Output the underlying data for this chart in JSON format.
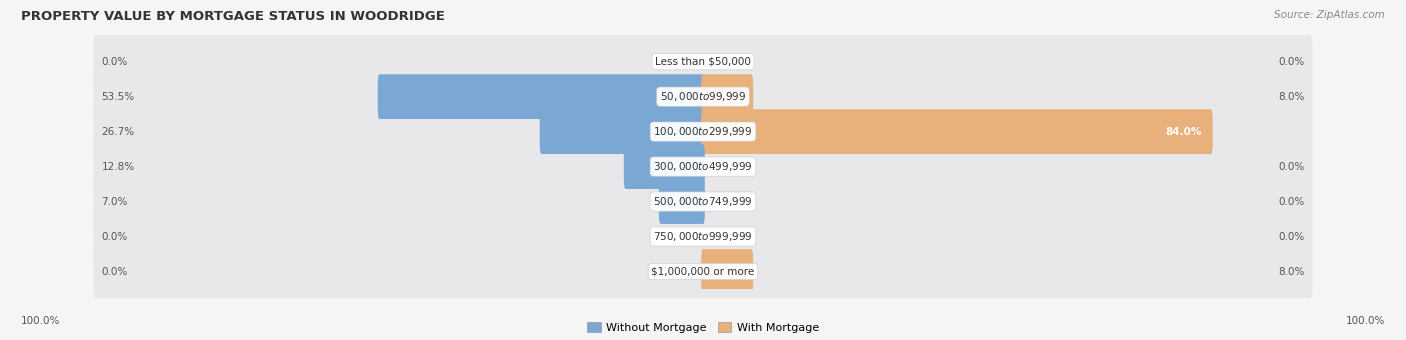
{
  "title": "PROPERTY VALUE BY MORTGAGE STATUS IN WOODRIDGE",
  "source": "Source: ZipAtlas.com",
  "categories": [
    "Less than $50,000",
    "$50,000 to $99,999",
    "$100,000 to $299,999",
    "$300,000 to $499,999",
    "$500,000 to $749,999",
    "$750,000 to $999,999",
    "$1,000,000 or more"
  ],
  "without_mortgage": [
    0.0,
    53.5,
    26.7,
    12.8,
    7.0,
    0.0,
    0.0
  ],
  "with_mortgage": [
    0.0,
    8.0,
    84.0,
    0.0,
    0.0,
    0.0,
    8.0
  ],
  "color_without": "#7ba7d4",
  "color_with": "#e8b07a",
  "fig_bg": "#f5f5f5",
  "row_bg": "#e8e8ea",
  "label_color": "#555555",
  "label_color_white": "#ffffff",
  "label_100_left": "100.0%",
  "label_100_right": "100.0%",
  "xlim": 100,
  "figsize": [
    14.06,
    3.4
  ],
  "dpi": 100
}
